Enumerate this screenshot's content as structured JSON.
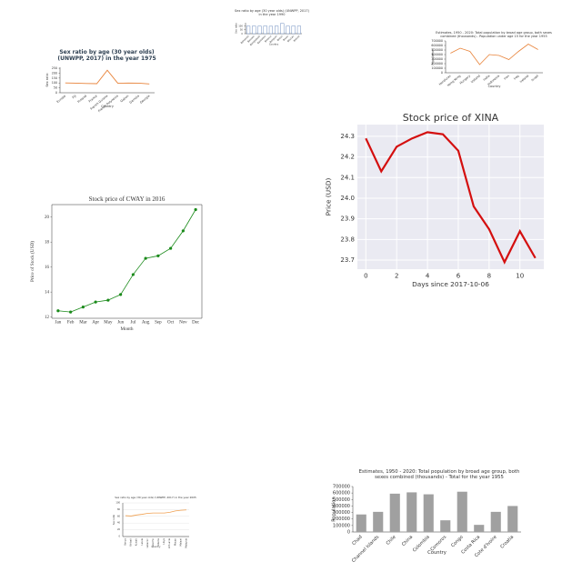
{
  "chart_data": [
    {
      "type": "bar",
      "title": "Sex ratio by age (30 year olds) (UNWPP, 2017) in the year 1990",
      "categories": [
        "Bahamas",
        "Bahrain",
        "Bangladesh",
        "Barbados",
        "Belarus",
        "Belgium",
        "Belize",
        "Benin",
        "Bhutan",
        "Bolivia"
      ],
      "values": [
        96,
        98,
        97,
        99,
        95,
        98,
        131,
        97,
        99,
        96
      ],
      "color": "#4c72b0",
      "fill": "#ffffff",
      "ylim": [
        0,
        140
      ],
      "yticks": [
        0,
        50,
        100
      ],
      "xlabel": "Country",
      "ylabel": "Sex ratio"
    },
    {
      "type": "line",
      "title": "Estimates, 1950 - 2020: Total population by broad age group, both sexes combined (thousands) - Population under age 15 for the year 1955",
      "categories": [
        "Honduras",
        "Hong Kong",
        "Hungary",
        "Iceland",
        "India",
        "Indonesia",
        "Iran",
        "Iraq",
        "Ireland",
        "Israel"
      ],
      "values": [
        430000,
        540000,
        470000,
        180000,
        400000,
        380000,
        290000,
        470000,
        630000,
        510000
      ],
      "color": "#e8833a",
      "ylim": [
        0,
        700000
      ],
      "yticks": [
        0,
        100000,
        200000,
        300000,
        400000,
        500000,
        600000,
        700000
      ],
      "xlabel": "Country",
      "ylabel": "Population"
    },
    {
      "type": "line",
      "title": "Sex ratio by age (30 year olds) (UNWPP, 2017) in the year 1975",
      "categories": [
        "Europe",
        "Fiji",
        "Finland",
        "France",
        "French Guiana",
        "French Polynesia",
        "Gabon",
        "Gambia",
        "Georgia"
      ],
      "values": [
        100,
        98,
        95,
        93,
        230,
        97,
        99,
        98,
        90
      ],
      "color": "#e8833a",
      "ylim": [
        0,
        260
      ],
      "yticks": [
        0,
        50,
        100,
        150,
        200,
        250
      ],
      "xlabel": "Country",
      "ylabel": "Sex ratio"
    },
    {
      "type": "line",
      "title": "Stock price of XINA",
      "x": [
        0,
        1,
        2,
        3,
        4,
        5,
        6,
        7,
        8,
        9,
        10,
        11
      ],
      "values": [
        24.29,
        24.13,
        24.25,
        24.29,
        24.32,
        24.31,
        24.23,
        23.96,
        23.85,
        23.69,
        23.84,
        23.71
      ],
      "color": "#d40f0f",
      "xlim": [
        -0.55,
        11.55
      ],
      "xticks": [
        0,
        2,
        4,
        6,
        8,
        10
      ],
      "ylim": [
        23.656,
        24.357
      ],
      "yticks": [
        23.7,
        23.8,
        23.9,
        {
          "value": 24,
          "label": "24.0"
        },
        24.1,
        24.2,
        24.3
      ],
      "xlabel": "Days since 2017-10-06",
      "ylabel": "Price (USD)",
      "grid": true,
      "background": "#eaeaf2"
    },
    {
      "type": "line",
      "title": "Stock price of CWAY in 2016",
      "categories": [
        "Jan",
        "Feb",
        "Mar",
        "Apr",
        "May",
        "Jun",
        "Jul",
        "Aug",
        "Sep",
        "Oct",
        "Nov",
        "Dec"
      ],
      "values": [
        12.5,
        12.4,
        12.8,
        13.2,
        13.35,
        13.8,
        15.4,
        16.7,
        16.9,
        17.5,
        18.9,
        20.6
      ],
      "color": "#1a8a1a",
      "markers": true,
      "ylim": [
        11.9,
        21
      ],
      "yticks": [
        12,
        14,
        16,
        18,
        20
      ],
      "xlabel": "Month",
      "ylabel": "Price of Stock (USD)"
    },
    {
      "type": "line",
      "title": "Sex ratio by age (30 year olds) (UNWPP, 2017) in the year 2005",
      "categories": [
        "Kenya",
        "Kiribati",
        "Kuwait",
        "Latvia",
        "Lebanon",
        "Lesotho",
        "Liberia",
        "Libya",
        "Lithuania",
        "Macao",
        "Malawi",
        "Malaysia"
      ],
      "values": [
        62,
        61,
        64,
        66,
        69,
        70,
        70,
        70,
        72,
        76,
        78,
        79
      ],
      "color": "#f0a050",
      "ylim": [
        0,
        100
      ],
      "yticks": [
        0,
        20,
        40,
        60,
        80,
        100
      ],
      "xlabel": "Country",
      "ylabel": "Sex ratio",
      "grid": true
    },
    {
      "type": "bar",
      "title": "Estimates, 1950 - 2020: Total population by broad age group, both sexes combined (thousands) - Total for the year 1955",
      "categories": [
        "Chad",
        "Channel Islands",
        "Chile",
        "China",
        "Colombia",
        "Comoros",
        "Congo",
        "Costa Rica",
        "Cote d'Ivoire",
        "Croatia"
      ],
      "values": [
        270000,
        310000,
        590000,
        610000,
        580000,
        180000,
        620000,
        110000,
        310000,
        400000
      ],
      "color": "#a0a0a0",
      "ylim": [
        0,
        700000
      ],
      "yticks": [
        0,
        100000,
        200000,
        300000,
        400000,
        500000,
        600000,
        700000
      ],
      "xlabel": "Country",
      "ylabel": "Population"
    }
  ]
}
